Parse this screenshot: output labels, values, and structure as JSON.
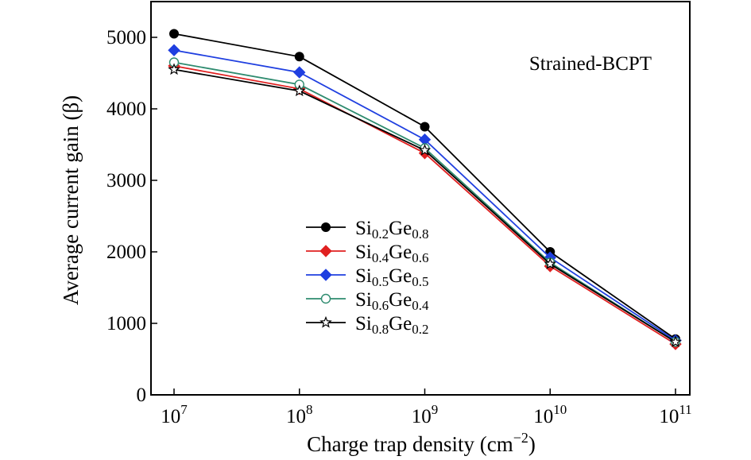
{
  "chart_data": {
    "type": "line",
    "title": "",
    "xlabel": "Charge trap density (cm−2)",
    "xlabel_main": "Charge trap density (cm",
    "xlabel_sup": "−2",
    "xlabel_close": ")",
    "ylabel": "Average current gain (β)",
    "x_scale": "log",
    "x": [
      10000000.0,
      100000000.0,
      1000000000.0,
      10000000000.0,
      100000000000.0
    ],
    "x_tick_base": "10",
    "x_tick_exponents": [
      "7",
      "8",
      "9",
      "10",
      "11"
    ],
    "ylim": [
      0,
      5500
    ],
    "y_ticks": [
      "0",
      "1000",
      "2000",
      "3000",
      "4000",
      "5000"
    ],
    "grid": false,
    "legend_position": "center-left",
    "annotation": "Strained-BCPT",
    "series": [
      {
        "name": "Si0.2Ge0.8",
        "name_parts": [
          {
            "t": "Si"
          },
          {
            "t": "0.2",
            "sub": true
          },
          {
            "t": "Ge"
          },
          {
            "t": "0.8",
            "sub": true
          }
        ],
        "color": "#000000",
        "marker": "filled-circle",
        "marker_color": "#000000",
        "values": [
          5050,
          4730,
          3750,
          2000,
          780
        ]
      },
      {
        "name": "Si0.4Ge0.6",
        "name_parts": [
          {
            "t": "Si"
          },
          {
            "t": "0.4",
            "sub": true
          },
          {
            "t": "Ge"
          },
          {
            "t": "0.6",
            "sub": true
          }
        ],
        "color": "#e02020",
        "marker": "filled-diamond",
        "marker_color": "#e02020",
        "values": [
          4600,
          4280,
          3380,
          1800,
          710
        ]
      },
      {
        "name": "Si0.5Ge0.5",
        "name_parts": [
          {
            "t": "Si"
          },
          {
            "t": "0.5",
            "sub": true
          },
          {
            "t": "Ge"
          },
          {
            "t": "0.5",
            "sub": true
          }
        ],
        "color": "#1f3fe0",
        "marker": "filled-diamond",
        "marker_color": "#1f3fe0",
        "values": [
          4820,
          4510,
          3570,
          1920,
          760
        ]
      },
      {
        "name": "Si0.6Ge0.4",
        "name_parts": [
          {
            "t": "Si"
          },
          {
            "t": "0.6",
            "sub": true
          },
          {
            "t": "Ge"
          },
          {
            "t": "0.4",
            "sub": true
          }
        ],
        "color": "#2e8b6f",
        "marker": "open-circle",
        "marker_color": "#2e8b6f",
        "values": [
          4650,
          4340,
          3450,
          1850,
          740
        ]
      },
      {
        "name": "Si0.8Ge0.2",
        "name_parts": [
          {
            "t": "Si"
          },
          {
            "t": "0.8",
            "sub": true
          },
          {
            "t": "Ge"
          },
          {
            "t": "0.2",
            "sub": true
          }
        ],
        "color": "#000000",
        "marker": "open-star",
        "marker_color": "#000000",
        "values": [
          4550,
          4250,
          3420,
          1830,
          740
        ]
      }
    ]
  }
}
